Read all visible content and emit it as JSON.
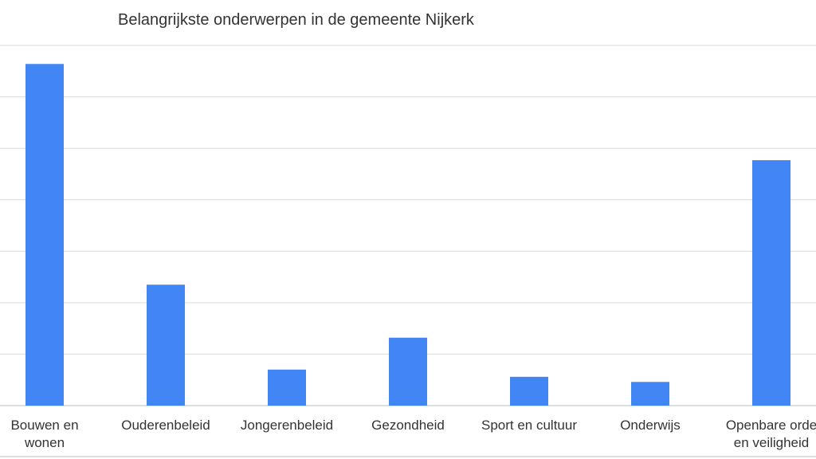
{
  "chart_data": {
    "type": "bar",
    "title": "Belangrijkste onderwerpen in de gemeente Nijkerk",
    "xlabel": "",
    "ylabel": "",
    "categories": [
      [
        "Bouwen en",
        "wonen"
      ],
      [
        "Ouderenbeleid"
      ],
      [
        "Jongerenbeleid"
      ],
      [
        "Gezondheid"
      ],
      [
        "Sport en cultuur"
      ],
      [
        "Onderwijs"
      ],
      [
        "Openbare orde",
        "en veiligheid"
      ]
    ],
    "values": [
      6.64,
      2.35,
      0.7,
      1.32,
      0.56,
      0.46,
      4.77
    ],
    "ylim": [
      0,
      7
    ],
    "y_gridlines": 7,
    "y_tick_labels_visible": false,
    "grid": true,
    "legend": "none",
    "bar_color": "#4285f4"
  }
}
